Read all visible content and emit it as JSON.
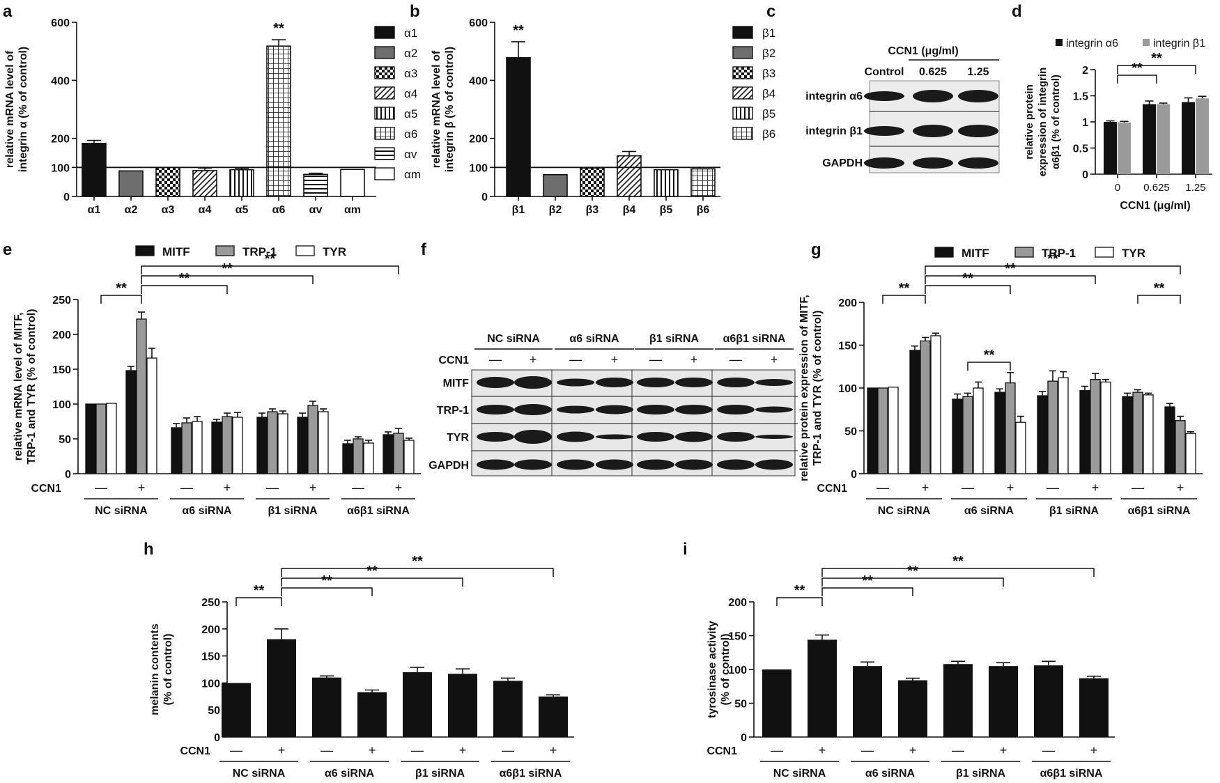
{
  "panel_labels": {
    "a": "a",
    "b": "b",
    "c": "c",
    "d": "d",
    "e": "e",
    "f": "f",
    "g": "g",
    "h": "h",
    "i": "i"
  },
  "common": {
    "ccn1_label": "CCN1",
    "minus": "—",
    "plus": "+",
    "groups": [
      "NC siRNA",
      "α6 siRNA",
      "β1 siRNA",
      "α6β1 siRNA"
    ],
    "sig": "**"
  },
  "colors": {
    "black": "#111111",
    "gray": "#6e6e6e",
    "lightgray": "#9a9a9a",
    "white": "#ffffff"
  },
  "chart_data": [
    {
      "id": "a",
      "type": "bar",
      "ylabel": "relative mRNA level of integrin α (% of control)",
      "ylim": [
        0,
        600
      ],
      "yticks": [
        0,
        100,
        200,
        400,
        600
      ],
      "reference_line": 100,
      "categories": [
        "α1",
        "α2",
        "α3",
        "α4",
        "α5",
        "α6",
        "αv",
        "αm"
      ],
      "values": [
        183,
        88,
        100,
        89,
        92,
        518,
        76,
        93
      ],
      "errors": [
        10,
        0,
        0,
        9,
        5,
        22,
        4,
        0
      ],
      "fills": [
        "solid-black",
        "solid-gray",
        "checker",
        "diagonal",
        "vertical",
        "grid",
        "horizontal",
        "white"
      ],
      "annotations": [
        {
          "category": "α6",
          "text": "**"
        }
      ],
      "legend": [
        "α1",
        "α2",
        "α3",
        "α4",
        "α5",
        "α6",
        "αv",
        "αm"
      ]
    },
    {
      "id": "b",
      "type": "bar",
      "ylabel": "relative mRNA level of integrin β (% of control)",
      "ylim": [
        0,
        600
      ],
      "yticks": [
        0,
        100,
        200,
        400,
        600
      ],
      "reference_line": 100,
      "categories": [
        "β1",
        "β2",
        "β3",
        "β4",
        "β5",
        "β6"
      ],
      "values": [
        478,
        75,
        98,
        140,
        92,
        95
      ],
      "errors": [
        55,
        0,
        0,
        15,
        0,
        0
      ],
      "fills": [
        "solid-black",
        "solid-gray",
        "checker",
        "diagonal",
        "vertical",
        "grid"
      ],
      "annotations": [
        {
          "category": "β1",
          "text": "**"
        }
      ],
      "legend": [
        "β1",
        "β2",
        "β3",
        "β4",
        "β5",
        "β6"
      ]
    },
    {
      "id": "d",
      "type": "bar",
      "xlabel": "CCN1 (μg/ml)",
      "ylabel": "relative protein expression of integrin α6β1 (% of control)",
      "ylim": [
        0,
        2
      ],
      "yticks": [
        "0",
        "0.5",
        "1",
        "1.5",
        "2"
      ],
      "categories": [
        "0",
        "0.625",
        "1.25"
      ],
      "series": [
        {
          "name": "integrin α6",
          "values": [
            1.0,
            1.34,
            1.38
          ],
          "errors": [
            0.02,
            0.06,
            0.08
          ]
        },
        {
          "name": "integrin β1",
          "values": [
            0.99,
            1.34,
            1.45
          ],
          "errors": [
            0.02,
            0.02,
            0.04
          ]
        }
      ],
      "brackets": [
        {
          "from": 0,
          "to": 1,
          "text": "**"
        },
        {
          "from": 0,
          "to": 2,
          "text": "**"
        }
      ]
    },
    {
      "id": "e",
      "type": "bar",
      "ylabel": "relative mRNA level of MITF, TRP-1 and TYR (% of control)",
      "ylim": [
        0,
        250
      ],
      "yticks": [
        0,
        50,
        100,
        150,
        200,
        250
      ],
      "series": [
        {
          "name": "MITF",
          "values": [
            100,
            148,
            66,
            74,
            81,
            81,
            43,
            56
          ],
          "errors": [
            0,
            6,
            6,
            4,
            6,
            6,
            5,
            4
          ]
        },
        {
          "name": "TRP-1",
          "values": [
            100,
            222,
            73,
            82,
            89,
            98,
            50,
            58
          ],
          "errors": [
            0,
            10,
            7,
            5,
            4,
            6,
            3,
            7
          ]
        },
        {
          "name": "TYR",
          "values": [
            101,
            166,
            75,
            81,
            86,
            89,
            44,
            48
          ],
          "errors": [
            0,
            14,
            7,
            7,
            4,
            4,
            4,
            3
          ]
        }
      ],
      "brackets": [
        {
          "from": 0,
          "to": 1,
          "text": "**"
        },
        {
          "from": 1,
          "to": 3,
          "text": "**"
        },
        {
          "from": 1,
          "to": 5,
          "text": "**"
        },
        {
          "from": 1,
          "to": 7,
          "text": "**"
        }
      ]
    },
    {
      "id": "g",
      "type": "bar",
      "ylabel": "relative protein expression of MITF, TRP-1 and TYR (% of control)",
      "ylim": [
        0,
        200
      ],
      "yticks": [
        0,
        50,
        100,
        150,
        200
      ],
      "series": [
        {
          "name": "MITF",
          "values": [
            100,
            144,
            87,
            95,
            91,
            97,
            90,
            78
          ],
          "errors": [
            0,
            5,
            6,
            4,
            5,
            5,
            4,
            4
          ]
        },
        {
          "name": "TRP-1",
          "values": [
            100,
            155,
            90,
            106,
            108,
            110,
            95,
            62
          ],
          "errors": [
            0,
            4,
            4,
            12,
            12,
            7,
            3,
            5
          ]
        },
        {
          "name": "TYR",
          "values": [
            101,
            161,
            100,
            60,
            112,
            107,
            92,
            47
          ],
          "errors": [
            0,
            3,
            7,
            7,
            7,
            3,
            2,
            2
          ]
        }
      ],
      "brackets": [
        {
          "from": 0,
          "to": 1,
          "text": "**"
        },
        {
          "from": 1,
          "to": 3,
          "text": "**"
        },
        {
          "from": 1,
          "to": 5,
          "text": "**"
        },
        {
          "from": 1,
          "to": 7,
          "text": "**"
        },
        {
          "from": 6,
          "to": 7,
          "text": "**"
        },
        {
          "from": 2,
          "to": 3,
          "text": "**"
        }
      ]
    },
    {
      "id": "h",
      "type": "bar",
      "ylabel": "melanin contents (% of control)",
      "ylim": [
        0,
        250
      ],
      "yticks": [
        0,
        50,
        100,
        150,
        200,
        250
      ],
      "values": [
        100,
        181,
        110,
        83,
        120,
        117,
        104,
        75
      ],
      "errors": [
        0,
        19,
        3,
        4,
        9,
        9,
        5,
        3
      ],
      "brackets": [
        {
          "from": 0,
          "to": 1,
          "text": "**"
        },
        {
          "from": 1,
          "to": 3,
          "text": "**"
        },
        {
          "from": 1,
          "to": 5,
          "text": "**"
        },
        {
          "from": 1,
          "to": 7,
          "text": "**"
        }
      ]
    },
    {
      "id": "i",
      "type": "bar",
      "ylabel": "tyrosinase activity (% of control)",
      "ylim": [
        0,
        200
      ],
      "yticks": [
        0,
        50,
        100,
        150,
        200
      ],
      "values": [
        100,
        144,
        105,
        84,
        108,
        105,
        106,
        87
      ],
      "errors": [
        0,
        7,
        6,
        3,
        4,
        5,
        6,
        3
      ],
      "brackets": [
        {
          "from": 0,
          "to": 1,
          "text": "**"
        },
        {
          "from": 1,
          "to": 3,
          "text": "**"
        },
        {
          "from": 1,
          "to": 5,
          "text": "**"
        },
        {
          "from": 1,
          "to": 7,
          "text": "**"
        }
      ]
    }
  ],
  "blot_c": {
    "header": "CCN1 (μg/ml)",
    "columns": [
      "Control",
      "0.625",
      "1.25"
    ],
    "rows": [
      "integrin α6",
      "integrin β1",
      "GAPDH"
    ]
  },
  "blot_f": {
    "rows": [
      "MITF",
      "TRP-1",
      "TYR",
      "GAPDH"
    ]
  }
}
